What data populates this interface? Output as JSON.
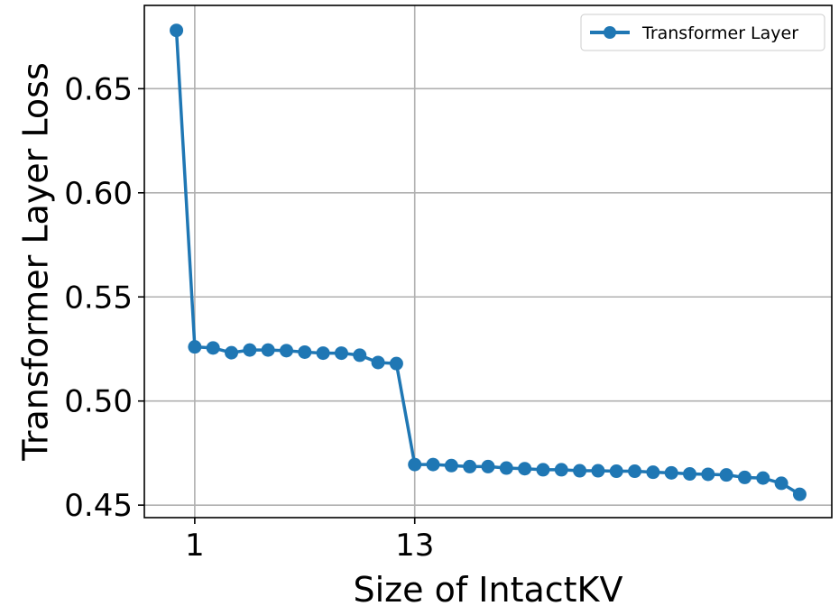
{
  "chart_data": {
    "type": "line",
    "xlabel": "Size of IntactKV",
    "ylabel": "Transformer Layer Loss",
    "x_ticks": [
      {
        "value": 1,
        "label": "1"
      },
      {
        "value": 13,
        "label": "13"
      }
    ],
    "y_ticks": [
      {
        "value": 0.45,
        "label": "0.45"
      },
      {
        "value": 0.5,
        "label": "0.50"
      },
      {
        "value": 0.55,
        "label": "0.55"
      },
      {
        "value": 0.6,
        "label": "0.60"
      },
      {
        "value": 0.65,
        "label": "0.65"
      }
    ],
    "xlim": [
      -1.75,
      35.75
    ],
    "ylim": [
      0.444,
      0.69
    ],
    "grid": true,
    "legend": "top-right",
    "colors": {
      "series": "#1f77b4",
      "grid": "#b0b0b0",
      "legend_border": "#cccccc"
    },
    "x": [
      0,
      1,
      2,
      3,
      4,
      5,
      6,
      7,
      8,
      9,
      10,
      11,
      12,
      13,
      14,
      15,
      16,
      17,
      18,
      19,
      20,
      21,
      22,
      23,
      24,
      25,
      26,
      27,
      28,
      29,
      30,
      31,
      32,
      33,
      34
    ],
    "series": [
      {
        "name": "Transformer Layer",
        "values": [
          0.678,
          0.526,
          0.5255,
          0.5232,
          0.5245,
          0.5245,
          0.5242,
          0.5235,
          0.523,
          0.523,
          0.522,
          0.5185,
          0.518,
          0.4695,
          0.4695,
          0.469,
          0.4685,
          0.4685,
          0.4678,
          0.4675,
          0.467,
          0.467,
          0.4665,
          0.4665,
          0.4663,
          0.4663,
          0.4658,
          0.4655,
          0.465,
          0.4648,
          0.4645,
          0.4633,
          0.463,
          0.4605,
          0.4552
        ]
      }
    ]
  }
}
